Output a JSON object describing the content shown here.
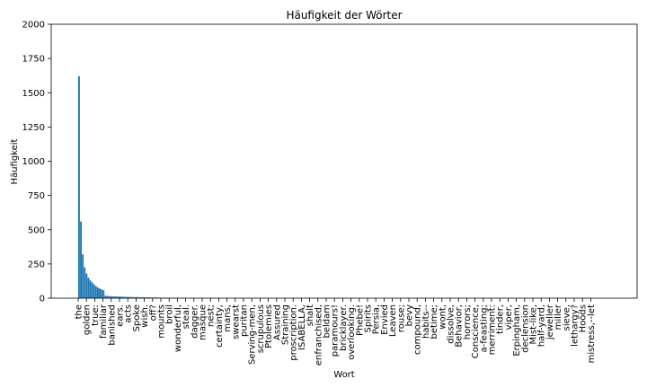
{
  "chart_data": {
    "type": "bar",
    "title": "Häufigkeit der Wörter",
    "xlabel": "Wort",
    "ylabel": "Häufigkeit",
    "ylim": [
      0,
      2000
    ],
    "yticks": [
      0,
      250,
      500,
      750,
      1000,
      1250,
      1500,
      1750,
      2000
    ],
    "bar_color": "#1f77b4",
    "grid": false,
    "xtick_labels": [
      "the",
      "golden",
      "true:",
      "familiar",
      "banished",
      "ears.",
      "acts",
      "Spoke",
      "wish.",
      "off?",
      "mounts",
      "broil",
      "wonderful,",
      "steal.",
      "dagger.",
      "masque",
      "nest;",
      "certainty,",
      "mans,",
      "swearst",
      "puritan",
      "Serving-men,",
      "scrupulous",
      "Ptolemies",
      "Assured",
      "Straining",
      "proscription.",
      "ISABELLA,",
      "shalt",
      "enfranchised,",
      "beldam",
      "paramours!",
      "bricklayer.",
      "overlooking.",
      "Phebe!",
      "Spirits",
      "Persia,",
      "Envied",
      "Leaven",
      "rouse;",
      "bevy",
      "compound,",
      "habits--",
      "betime;",
      "wont,",
      "dissolve,",
      "Behavior,",
      "horrors;",
      "Conscience,",
      "a-feasting;",
      "merriment:",
      "tinder,",
      "viper,",
      "Erpingham,",
      "declension",
      "Mist-like,",
      "half-yard,",
      "jeweller",
      "miller",
      "sieve,",
      "lethargy?",
      "Hoods",
      "mistress,--let"
    ],
    "values": [
      1620,
      560,
      320,
      225,
      180,
      150,
      130,
      115,
      100,
      88,
      78,
      70,
      64,
      58,
      18,
      16,
      15,
      14,
      13,
      13,
      12,
      12,
      11,
      11,
      10,
      10,
      9,
      9,
      9,
      8,
      8,
      8,
      7,
      7,
      7,
      6,
      6,
      6,
      5,
      5,
      5,
      5,
      4,
      4,
      4,
      4,
      3,
      3,
      3,
      3,
      3,
      2,
      2,
      2,
      2,
      2,
      2,
      1,
      1,
      1,
      1,
      1,
      1
    ]
  }
}
